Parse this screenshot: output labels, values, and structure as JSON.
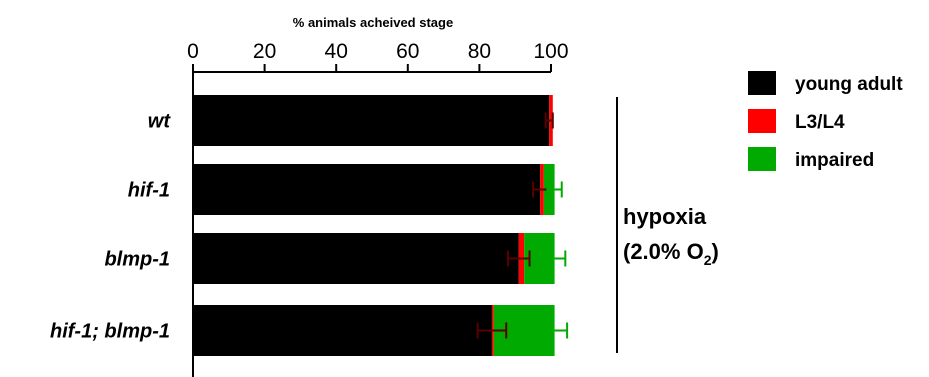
{
  "chart_data": {
    "type": "bar",
    "orientation": "horizontal",
    "stacked": true,
    "xlabel": "% animals acheived stage",
    "xlim": [
      0,
      100
    ],
    "xticks": [
      "0",
      "20",
      "40",
      "60",
      "80",
      "100"
    ],
    "categories": [
      "wt",
      "hif-1",
      "blmp-1",
      "hif-1; blmp-1"
    ],
    "series": [
      {
        "name": "young adult",
        "color": "#000000",
        "values": [
          99.5,
          97,
          91,
          83.5
        ],
        "errors": [
          1.0,
          2.0,
          3.0,
          4.0
        ]
      },
      {
        "name": "L3/L4",
        "color": "#ff0000",
        "values": [
          1,
          1,
          1.5,
          0.5
        ],
        "errors": [
          0,
          0,
          0,
          0
        ]
      },
      {
        "name": "impaired",
        "color": "#00aa00",
        "values": [
          0,
          3,
          8.5,
          17
        ],
        "errors": [
          0,
          2.0,
          3.0,
          3.5
        ]
      }
    ],
    "legend_position": "right",
    "grid": false
  },
  "condition": {
    "line1": "hypoxia",
    "line2_prefix": "(2.0% O",
    "line2_sub": "2",
    "line2_suffix": ")"
  }
}
